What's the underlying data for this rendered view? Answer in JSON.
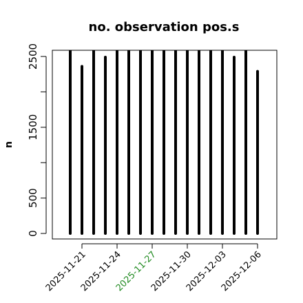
{
  "chart_data": {
    "type": "bar",
    "title": "no. observation pos.s",
    "xlabel": "",
    "ylabel": "n",
    "ylim": [
      0,
      2600
    ],
    "y_ticks": [
      0,
      500,
      1500,
      2500
    ],
    "x_ticks": [
      {
        "label": "2025-11-21",
        "date": "2025-11-21",
        "color": "#000000"
      },
      {
        "label": "2025-11-24",
        "date": "2025-11-24",
        "color": "#000000"
      },
      {
        "label": "2025-11-27",
        "date": "2025-11-27",
        "color": "#228B22"
      },
      {
        "label": "2025-11-30",
        "date": "2025-11-30",
        "color": "#000000"
      },
      {
        "label": "2025-12-03",
        "date": "2025-12-03",
        "color": "#000000"
      },
      {
        "label": "2025-12-06",
        "date": "2025-12-06",
        "color": "#000000"
      }
    ],
    "x": [
      "2025-11-20",
      "2025-11-21",
      "2025-11-22",
      "2025-11-23",
      "2025-11-24",
      "2025-11-25",
      "2025-11-26",
      "2025-11-27",
      "2025-11-28",
      "2025-11-29",
      "2025-11-30",
      "2025-12-01",
      "2025-12-02",
      "2025-12-03",
      "2025-12-04",
      "2025-12-05",
      "2025-12-06"
    ],
    "values": [
      2600,
      2360,
      2600,
      2490,
      2600,
      2600,
      2600,
      2600,
      2600,
      2600,
      2600,
      2600,
      2600,
      2600,
      2490,
      2600,
      2290
    ],
    "bar_color": "#000000",
    "grid": false
  }
}
